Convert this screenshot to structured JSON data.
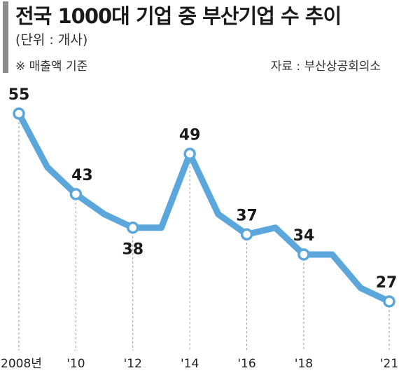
{
  "header": {
    "title": "전국 1000대 기업 중 부산기업 수 추이",
    "unit": "(단위 : 개사)",
    "note": "※ 매출액 기준",
    "source": "자료 : 부산상공회의소"
  },
  "colors": {
    "line": "#5ba7dc",
    "marker_fill": "#ffffff",
    "guide": "#999999",
    "accent_bar": "#8c8c8c"
  },
  "chart_data": {
    "type": "line",
    "title": "전국 1000대 기업 중 부산기업 수 추이",
    "ylabel": "",
    "xlabel": "",
    "x": [
      2008,
      2009,
      2010,
      2011,
      2012,
      2013,
      2014,
      2015,
      2016,
      2017,
      2018,
      2019,
      2020,
      2021
    ],
    "values": [
      55,
      47,
      43,
      40,
      38,
      38,
      49,
      40,
      37,
      38,
      34,
      34,
      29,
      27
    ],
    "labeled_points": [
      {
        "x": 2008,
        "value": 55,
        "label": "55",
        "tick": "2008년"
      },
      {
        "x": 2010,
        "value": 43,
        "label": "43",
        "tick": "'10"
      },
      {
        "x": 2012,
        "value": 38,
        "label": "38",
        "tick": "'12"
      },
      {
        "x": 2014,
        "value": 49,
        "label": "49",
        "tick": "'14"
      },
      {
        "x": 2016,
        "value": 37,
        "label": "37",
        "tick": "'16"
      },
      {
        "x": 2018,
        "value": 34,
        "label": "34",
        "tick": "'18"
      },
      {
        "x": 2021,
        "value": 27,
        "label": "27",
        "tick": "'21"
      }
    ],
    "grid": false,
    "legend": "none"
  }
}
